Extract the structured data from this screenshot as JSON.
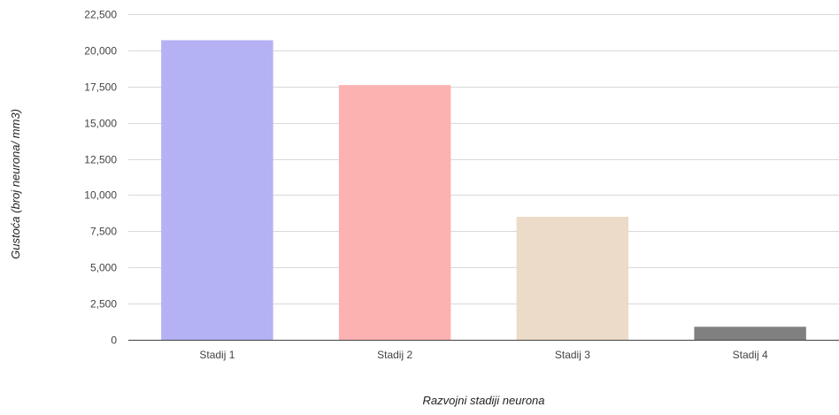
{
  "chart_data": {
    "type": "bar",
    "title": "",
    "xlabel": "Razvojni stadiji neurona",
    "ylabel": "Gustoća (broj neurona/ mm3)",
    "categories": [
      "Stadij 1",
      "Stadij 2",
      "Stadij 3",
      "Stadij 4"
    ],
    "values": [
      20700,
      17600,
      8500,
      900
    ],
    "colors": [
      "#b4b1f5",
      "#fdb2b2",
      "#ecdbc8",
      "#808080"
    ],
    "ylim": [
      0,
      22500
    ],
    "yticks": [
      0,
      2500,
      5000,
      7500,
      10000,
      12500,
      15000,
      17500,
      20000,
      22500
    ],
    "ytick_labels": [
      "0",
      "2,500",
      "5,000",
      "7,500",
      "10,000",
      "12,500",
      "15,000",
      "17,500",
      "20,000",
      "22,500"
    ],
    "grid": true,
    "legend": "none",
    "gridline_color": "#d9d9d9",
    "baseline_color": "#444444"
  }
}
